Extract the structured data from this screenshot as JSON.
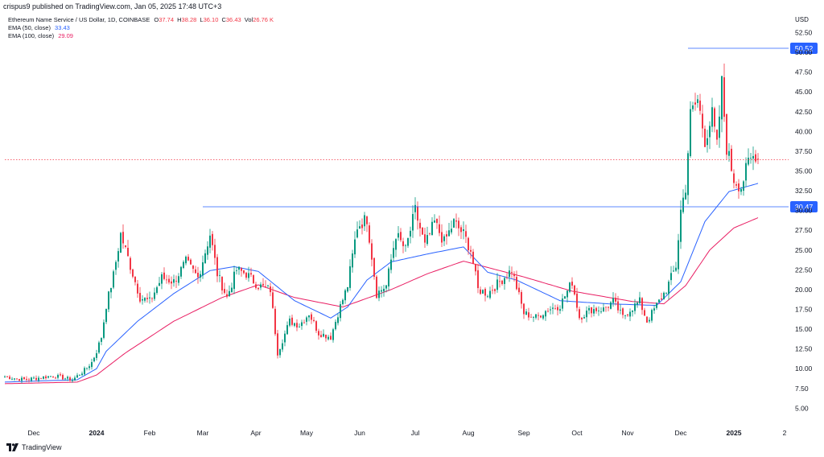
{
  "header": {
    "published_line": "crispus9 published on TradingView.com, Jan 05, 2025 17:48 UTC+3",
    "symbol_line": "Ethereum Name Service / US Dollar, 1D, COINBASE",
    "ohlc": [
      {
        "key": "O",
        "value": "37.74"
      },
      {
        "key": "H",
        "value": "38.28"
      },
      {
        "key": "L",
        "value": "36.10"
      },
      {
        "key": "C",
        "value": "36.43"
      },
      {
        "key": "Vol",
        "value": "26.76 K"
      }
    ],
    "indicators": [
      {
        "label": "EMA (50, close)",
        "value": "33.43",
        "color": "#2962ff"
      },
      {
        "label": "EMA (100, close)",
        "value": "29.09",
        "color": "#e91e63"
      }
    ]
  },
  "footer": {
    "brand": "TradingView"
  },
  "chart_data": {
    "type": "candlestick",
    "currency_label": "USD",
    "y_ticks": [
      "52.50",
      "50.00",
      "47.50",
      "45.00",
      "42.50",
      "40.00",
      "37.50",
      "35.00",
      "32.50",
      "30.00",
      "27.50",
      "25.00",
      "22.50",
      "20.00",
      "17.50",
      "15.00",
      "12.50",
      "10.00",
      "7.50",
      "5.00"
    ],
    "ylim": [
      3.0,
      55.2
    ],
    "x_ticks": [
      "Dec",
      "2024",
      "Feb",
      "Mar",
      "Apr",
      "May",
      "Jun",
      "Jul",
      "Aug",
      "Sep",
      "Oct",
      "Nov",
      "Dec",
      "2025",
      "2"
    ],
    "price_labels": [
      {
        "value": "50.52",
        "color": "#2962ff"
      },
      {
        "value": "30.47",
        "color": "#2962ff"
      }
    ],
    "current_price_line": {
      "value": 36.43,
      "color": "#f23645",
      "style": "dotted"
    },
    "colors": {
      "up": "#089981",
      "down": "#f23645",
      "ema50": "#2962ff",
      "ema100": "#e91e63"
    },
    "keypoints": [
      [
        0,
        9.0
      ],
      [
        8,
        8.6
      ],
      [
        20,
        9.1
      ],
      [
        28,
        8.6
      ],
      [
        33,
        9.8
      ],
      [
        36,
        10.8
      ],
      [
        38,
        12.2
      ],
      [
        40,
        14.0
      ],
      [
        42,
        18.0
      ],
      [
        45,
        21.8
      ],
      [
        48,
        27.0
      ],
      [
        52,
        23.0
      ],
      [
        56,
        19.0
      ],
      [
        60,
        18.5
      ],
      [
        65,
        21.5
      ],
      [
        70,
        21.0
      ],
      [
        75,
        23.5
      ],
      [
        80,
        21.5
      ],
      [
        85,
        27.0
      ],
      [
        88,
        22.0
      ],
      [
        92,
        19.0
      ],
      [
        96,
        22.5
      ],
      [
        100,
        22.0
      ],
      [
        105,
        20.5
      ],
      [
        110,
        20.0
      ],
      [
        113,
        12.0
      ],
      [
        118,
        16.0
      ],
      [
        122,
        15.5
      ],
      [
        126,
        17.0
      ],
      [
        130,
        14.5
      ],
      [
        135,
        14.0
      ],
      [
        138,
        17.0
      ],
      [
        142,
        20.5
      ],
      [
        146,
        28.0
      ],
      [
        150,
        29.0
      ],
      [
        154,
        19.5
      ],
      [
        158,
        20.5
      ],
      [
        162,
        27.0
      ],
      [
        166,
        25.0
      ],
      [
        170,
        30.0
      ],
      [
        174,
        25.5
      ],
      [
        178,
        28.5
      ],
      [
        182,
        26.0
      ],
      [
        186,
        28.5
      ],
      [
        190,
        27.0
      ],
      [
        193,
        25.0
      ],
      [
        196,
        20.0
      ],
      [
        200,
        19.5
      ],
      [
        205,
        21.0
      ],
      [
        210,
        22.5
      ],
      [
        215,
        17.0
      ],
      [
        220,
        16.5
      ],
      [
        225,
        17.5
      ],
      [
        230,
        18.0
      ],
      [
        235,
        21.0
      ],
      [
        238,
        16.5
      ],
      [
        243,
        17.5
      ],
      [
        248,
        17.5
      ],
      [
        252,
        18.5
      ],
      [
        256,
        16.5
      ],
      [
        259,
        17.5
      ],
      [
        263,
        18.5
      ],
      [
        266,
        16.0
      ],
      [
        270,
        18.0
      ],
      [
        274,
        20.0
      ],
      [
        278,
        23.0
      ],
      [
        280,
        30.0
      ],
      [
        282,
        33.0
      ],
      [
        284,
        42.0
      ],
      [
        287,
        44.0
      ],
      [
        290,
        39.0
      ],
      [
        293,
        42.0
      ],
      [
        295,
        38.0
      ],
      [
        297,
        46.0
      ],
      [
        299,
        38.0
      ],
      [
        302,
        34.0
      ],
      [
        305,
        33.0
      ],
      [
        308,
        36.0
      ],
      [
        311,
        37.2
      ],
      [
        312,
        36.43
      ]
    ],
    "ema_keypoints": {
      "ema50": [
        [
          0,
          8.3
        ],
        [
          30,
          8.6
        ],
        [
          38,
          10.0
        ],
        [
          42,
          12.2
        ],
        [
          55,
          16.0
        ],
        [
          70,
          19.5
        ],
        [
          85,
          22.4
        ],
        [
          95,
          22.9
        ],
        [
          105,
          22.3
        ],
        [
          120,
          18.6
        ],
        [
          135,
          16.4
        ],
        [
          142,
          17.8
        ],
        [
          150,
          21.2
        ],
        [
          160,
          23.5
        ],
        [
          175,
          24.5
        ],
        [
          190,
          25.4
        ],
        [
          200,
          22.2
        ],
        [
          212,
          21.2
        ],
        [
          230,
          18.6
        ],
        [
          250,
          18.2
        ],
        [
          270,
          18.0
        ],
        [
          280,
          21.0
        ],
        [
          290,
          28.6
        ],
        [
          300,
          32.4
        ],
        [
          312,
          33.43
        ]
      ],
      "ema100": [
        [
          0,
          8.1
        ],
        [
          30,
          8.3
        ],
        [
          38,
          9.2
        ],
        [
          50,
          12.0
        ],
        [
          70,
          16.0
        ],
        [
          90,
          19.0
        ],
        [
          105,
          20.6
        ],
        [
          120,
          19.0
        ],
        [
          140,
          17.8
        ],
        [
          160,
          20.0
        ],
        [
          175,
          22.0
        ],
        [
          190,
          23.6
        ],
        [
          200,
          22.8
        ],
        [
          215,
          21.6
        ],
        [
          235,
          19.8
        ],
        [
          260,
          18.5
        ],
        [
          273,
          18.2
        ],
        [
          282,
          20.5
        ],
        [
          292,
          25.0
        ],
        [
          302,
          27.8
        ],
        [
          312,
          29.09
        ]
      ]
    },
    "horizontal_levels": [
      50.52,
      30.47
    ],
    "levels_start_index": [
      283,
      82
    ]
  }
}
